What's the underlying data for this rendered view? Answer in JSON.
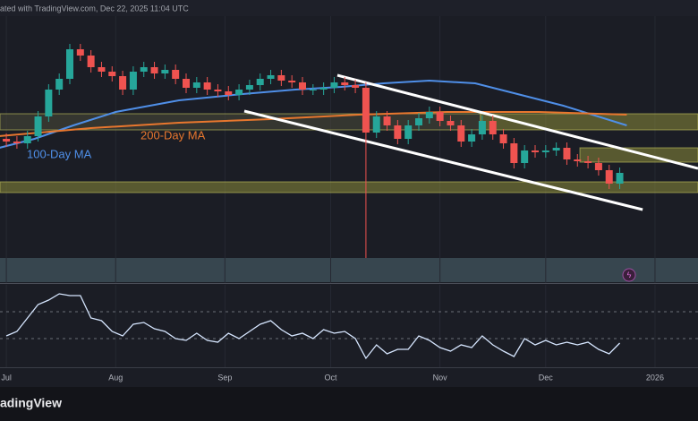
{
  "header": {
    "watermark": "ated with TradingView.com, Dec 22, 2025 11:04 UTC"
  },
  "chart_data": [
    {
      "type": "candlestick",
      "x": [
        0,
        3,
        6,
        9,
        12,
        15,
        18,
        21,
        24,
        27,
        30,
        33,
        36,
        39,
        42,
        45,
        48,
        51,
        54,
        57,
        60,
        63,
        66,
        69,
        72,
        75,
        78,
        81,
        84,
        87,
        90,
        93,
        96,
        99,
        102,
        105,
        108,
        111,
        114,
        117,
        120,
        123,
        126,
        129,
        132,
        135,
        138,
        141,
        144,
        147,
        150,
        153,
        156,
        159,
        162,
        165,
        168,
        171,
        174
      ],
      "open": [
        145,
        142,
        140,
        148,
        170,
        200,
        212,
        245,
        238,
        225,
        220,
        215,
        200,
        220,
        225,
        218,
        222,
        212,
        202,
        208,
        200,
        198,
        194,
        200,
        205,
        212,
        216,
        210,
        208,
        200,
        200,
        202,
        208,
        205,
        202,
        152,
        170,
        160,
        145,
        160,
        168,
        175,
        165,
        160,
        142,
        150,
        165,
        150,
        140,
        118,
        132,
        130,
        132,
        135,
        122,
        120,
        118,
        110,
        95
      ],
      "high": [
        151,
        148,
        154,
        176,
        206,
        218,
        251,
        251,
        244,
        231,
        226,
        221,
        226,
        231,
        231,
        228,
        228,
        218,
        214,
        214,
        206,
        204,
        206,
        211,
        218,
        222,
        222,
        216,
        214,
        206,
        208,
        214,
        214,
        211,
        208,
        176,
        176,
        166,
        166,
        174,
        181,
        181,
        171,
        166,
        156,
        171,
        171,
        156,
        146,
        138,
        138,
        138,
        141,
        141,
        128,
        126,
        124,
        116,
        113
      ],
      "low": [
        136,
        134,
        134,
        142,
        164,
        194,
        206,
        232,
        219,
        214,
        209,
        194,
        194,
        214,
        212,
        212,
        206,
        196,
        196,
        194,
        192,
        188,
        188,
        194,
        199,
        206,
        204,
        202,
        194,
        194,
        194,
        196,
        199,
        196,
        12,
        146,
        154,
        139,
        139,
        154,
        162,
        159,
        154,
        136,
        136,
        144,
        144,
        134,
        112,
        112,
        124,
        124,
        126,
        116,
        114,
        112,
        104,
        89,
        89
      ],
      "close": [
        142,
        140,
        148,
        170,
        200,
        212,
        245,
        238,
        225,
        220,
        215,
        200,
        220,
        225,
        218,
        222,
        212,
        202,
        208,
        200,
        198,
        194,
        200,
        205,
        212,
        216,
        210,
        208,
        200,
        200,
        202,
        208,
        205,
        202,
        152,
        170,
        160,
        145,
        160,
        168,
        175,
        165,
        160,
        142,
        150,
        165,
        150,
        140,
        118,
        132,
        130,
        132,
        135,
        122,
        120,
        118,
        110,
        95,
        107
      ],
      "up_color": "#26a69a",
      "down_color": "#ef5350",
      "xlim": [
        -1.8,
        196.2
      ],
      "ylim": [
        10,
        282
      ],
      "xticks": [
        {
          "value": 0,
          "label": "Jul"
        },
        {
          "value": 31,
          "label": "Aug"
        },
        {
          "value": 62,
          "label": "Sep"
        },
        {
          "value": 92,
          "label": "Oct"
        },
        {
          "value": 123,
          "label": "Nov"
        },
        {
          "value": 153,
          "label": "Dec"
        },
        {
          "value": 184,
          "label": "2026"
        }
      ],
      "grid": true,
      "series": [
        {
          "name": "100-Day MA",
          "color": "#4f8fe8",
          "x": [
            -2,
            8,
            19,
            31,
            49,
            67,
            82,
            95,
            107,
            120,
            133,
            145,
            158,
            176
          ],
          "values": [
            135,
            145,
            160,
            175,
            188,
            195,
            200,
            203,
            207,
            210,
            207,
            195,
            182,
            160
          ]
        },
        {
          "name": "200-Day MA",
          "color": "#e8772e",
          "x": [
            -2,
            24,
            49,
            75,
            100,
            125,
            151,
            176
          ],
          "values": [
            148,
            157,
            163,
            167,
            172,
            175,
            175,
            172
          ]
        }
      ],
      "trendlines": [
        {
          "color": "#ffffff",
          "x": [
            93.9,
            196.2
          ],
          "values": [
            216,
            112
          ]
        },
        {
          "color": "#ffffff",
          "x": [
            67.5,
            180.5
          ],
          "values": [
            176,
            66
          ]
        }
      ],
      "zones": [
        {
          "color": "#8a8a3a",
          "x": [
            -1.8,
            196.2
          ],
          "range": [
            85,
            97
          ]
        },
        {
          "color": "#4a4a3a",
          "x": [
            -1.8,
            134.5
          ],
          "range": [
            155,
            173
          ]
        },
        {
          "color": "#8a8a3a",
          "x": [
            134.5,
            196.2
          ],
          "range": [
            155,
            173
          ]
        },
        {
          "color": "#8a8a3a",
          "x": [
            162.7,
            196.2
          ],
          "range": [
            119,
            135
          ]
        }
      ]
    },
    {
      "type": "line",
      "x": [
        0,
        3,
        6,
        9,
        12,
        15,
        18,
        21,
        24,
        27,
        30,
        33,
        36,
        39,
        42,
        45,
        48,
        51,
        54,
        57,
        60,
        63,
        66,
        69,
        72,
        75,
        78,
        81,
        84,
        87,
        90,
        93,
        96,
        99,
        102,
        105,
        108,
        111,
        114,
        117,
        120,
        123,
        126,
        129,
        132,
        135,
        138,
        141,
        144,
        147,
        150,
        153,
        156,
        159,
        162,
        165,
        168,
        171,
        174
      ],
      "values": [
        45,
        50,
        65,
        80,
        85,
        92,
        90,
        90,
        65,
        62,
        50,
        45,
        58,
        60,
        53,
        50,
        42,
        40,
        48,
        40,
        38,
        48,
        42,
        50,
        58,
        62,
        52,
        45,
        48,
        42,
        52,
        48,
        50,
        42,
        20,
        35,
        25,
        30,
        30,
        45,
        40,
        32,
        28,
        35,
        32,
        45,
        35,
        28,
        22,
        42,
        35,
        40,
        35,
        38,
        35,
        38,
        30,
        25,
        37
      ],
      "color": "#d6e6ff",
      "ylim": [
        12,
        100
      ],
      "levels": [
        72,
        42
      ]
    }
  ],
  "footer": {
    "logo": "adingView"
  }
}
